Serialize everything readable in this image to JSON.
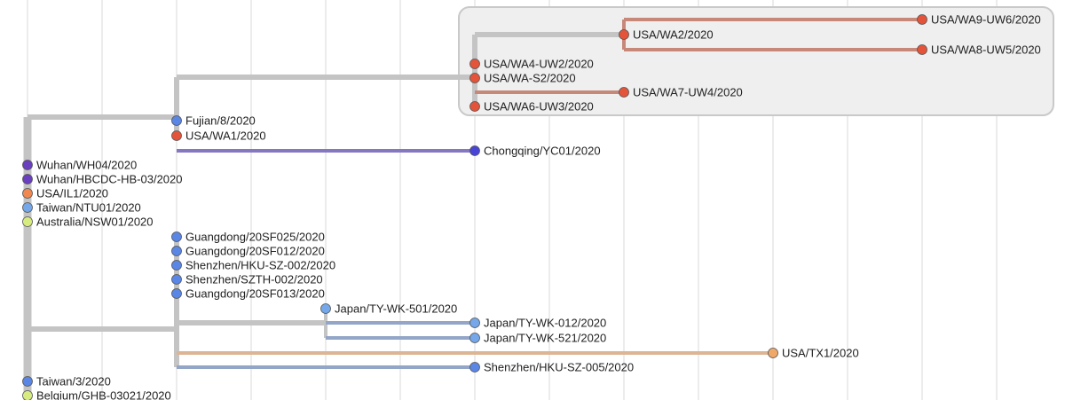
{
  "colors": {
    "base": "#c4c4c4",
    "wa_red": "#e4543a",
    "wa_branch": "#c7887a",
    "purple": "#6a3fc0",
    "purple_branch": "#8677c2",
    "orange": "#f08850",
    "orange_light": "#f0a868",
    "orange_branch": "#dcb594",
    "blue": "#5a86e6",
    "light_blue": "#74a8ea",
    "blue_branch": "#93a6c8",
    "indigo": "#4844d8",
    "yellow_green": "#d7ec80"
  },
  "tips": [
    {
      "id": "USA/WA9-UW6/2020",
      "color": "wa_red"
    },
    {
      "id": "USA/WA2/2020",
      "color": "wa_red"
    },
    {
      "id": "USA/WA8-UW5/2020",
      "color": "wa_red"
    },
    {
      "id": "USA/WA4-UW2/2020",
      "color": "wa_red"
    },
    {
      "id": "USA/WA-S2/2020",
      "color": "wa_red"
    },
    {
      "id": "USA/WA7-UW4/2020",
      "color": "wa_red"
    },
    {
      "id": "USA/WA6-UW3/2020",
      "color": "wa_red"
    },
    {
      "id": "Fujian/8/2020",
      "color": "blue"
    },
    {
      "id": "USA/WA1/2020",
      "color": "wa_red"
    },
    {
      "id": "Chongqing/YC01/2020",
      "color": "indigo"
    },
    {
      "id": "Wuhan/WH04/2020",
      "color": "purple"
    },
    {
      "id": "Wuhan/HBCDC-HB-03/2020",
      "color": "purple"
    },
    {
      "id": "USA/IL1/2020",
      "color": "orange"
    },
    {
      "id": "Taiwan/NTU01/2020",
      "color": "light_blue"
    },
    {
      "id": "Australia/NSW01/2020",
      "color": "yellow_green"
    },
    {
      "id": "Guangdong/20SF025/2020",
      "color": "blue"
    },
    {
      "id": "Guangdong/20SF012/2020",
      "color": "blue"
    },
    {
      "id": "Shenzhen/HKU-SZ-002/2020",
      "color": "blue"
    },
    {
      "id": "Shenzhen/SZTH-002/2020",
      "color": "blue"
    },
    {
      "id": "Guangdong/20SF013/2020",
      "color": "blue"
    },
    {
      "id": "Japan/TY-WK-501/2020",
      "color": "light_blue"
    },
    {
      "id": "Japan/TY-WK-012/2020",
      "color": "light_blue"
    },
    {
      "id": "Japan/TY-WK-521/2020",
      "color": "light_blue"
    },
    {
      "id": "USA/TX1/2020",
      "color": "orange_light"
    },
    {
      "id": "Shenzhen/HKU-SZ-005/2020",
      "color": "blue"
    },
    {
      "id": "Taiwan/3/2020",
      "color": "blue"
    },
    {
      "id": "Belgium/GHB-03021/2020",
      "color": "yellow_green"
    }
  ]
}
